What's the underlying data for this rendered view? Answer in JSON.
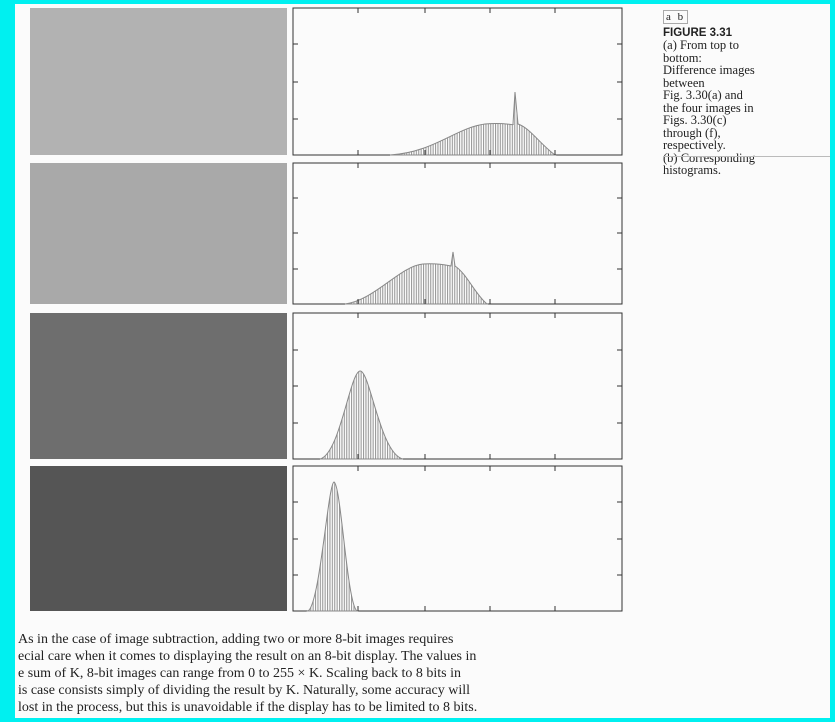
{
  "figure": {
    "panel_labels": "a b",
    "number": "FIGURE 3.31",
    "caption_lines": [
      "(a) From top to",
      "bottom:",
      "Difference images",
      "between",
      "Fig. 3.30(a) and",
      "the four images in",
      "Figs. 3.30(c)",
      "through (f),",
      "respectively.",
      "(b) Corresponding",
      "histograms."
    ]
  },
  "body": {
    "lines": [
      "As in the case of image subtraction, adding two or more 8-bit images requires",
      "ecial care when it comes to displaying the result on an 8-bit display. The values in",
      "e sum of K, 8-bit images can range from 0 to 255 × K. Scaling back to 8 bits in",
      "is case consists simply of dividing the result by K. Naturally, some accuracy will",
      "lost in the process, but this is unavoidable if the display has to be limited to 8 bits."
    ]
  }
}
